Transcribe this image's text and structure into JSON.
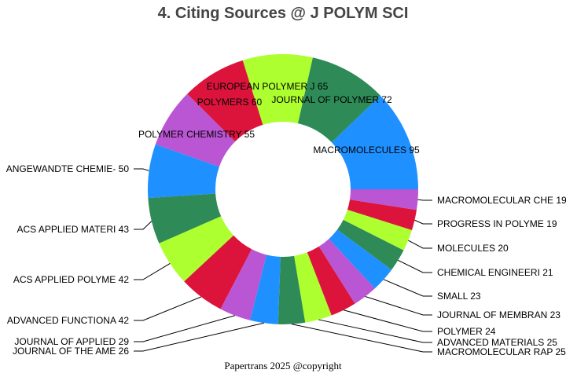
{
  "chart_data": {
    "type": "pie",
    "hole": true,
    "title": "4. Citing Sources @ J POLYM SCI",
    "direction": "counterclockwise",
    "labels": [
      "MACROMOLECULES",
      "JOURNAL OF POLYMER",
      "EUROPEAN POLYMER J",
      "POLYMERS",
      "POLYMER CHEMISTRY",
      "ANGEWANDTE CHEMIE-",
      "ACS APPLIED MATERI",
      "ACS APPLIED POLYME",
      "ADVANCED FUNCTIONA",
      "JOURNAL OF APPLIED",
      "JOURNAL OF THE AME",
      "MACROMOLECULAR RAP",
      "ADVANCED MATERIALS",
      "POLYMER",
      "JOURNAL OF MEMBRAN",
      "SMALL",
      "CHEMICAL ENGINEERI",
      "MOLECULES",
      "PROGRESS IN POLYME",
      "MACROMOLECULAR CHE"
    ],
    "values": [
      95,
      72,
      65,
      60,
      55,
      50,
      43,
      42,
      42,
      29,
      26,
      25,
      25,
      24,
      23,
      23,
      21,
      20,
      19,
      19
    ],
    "colors": [
      "#1e90ff",
      "#2e8b57",
      "#adff2f",
      "#dc143c",
      "#ba55d3"
    ]
  },
  "footer": "Papertrans 2025 @copyright"
}
